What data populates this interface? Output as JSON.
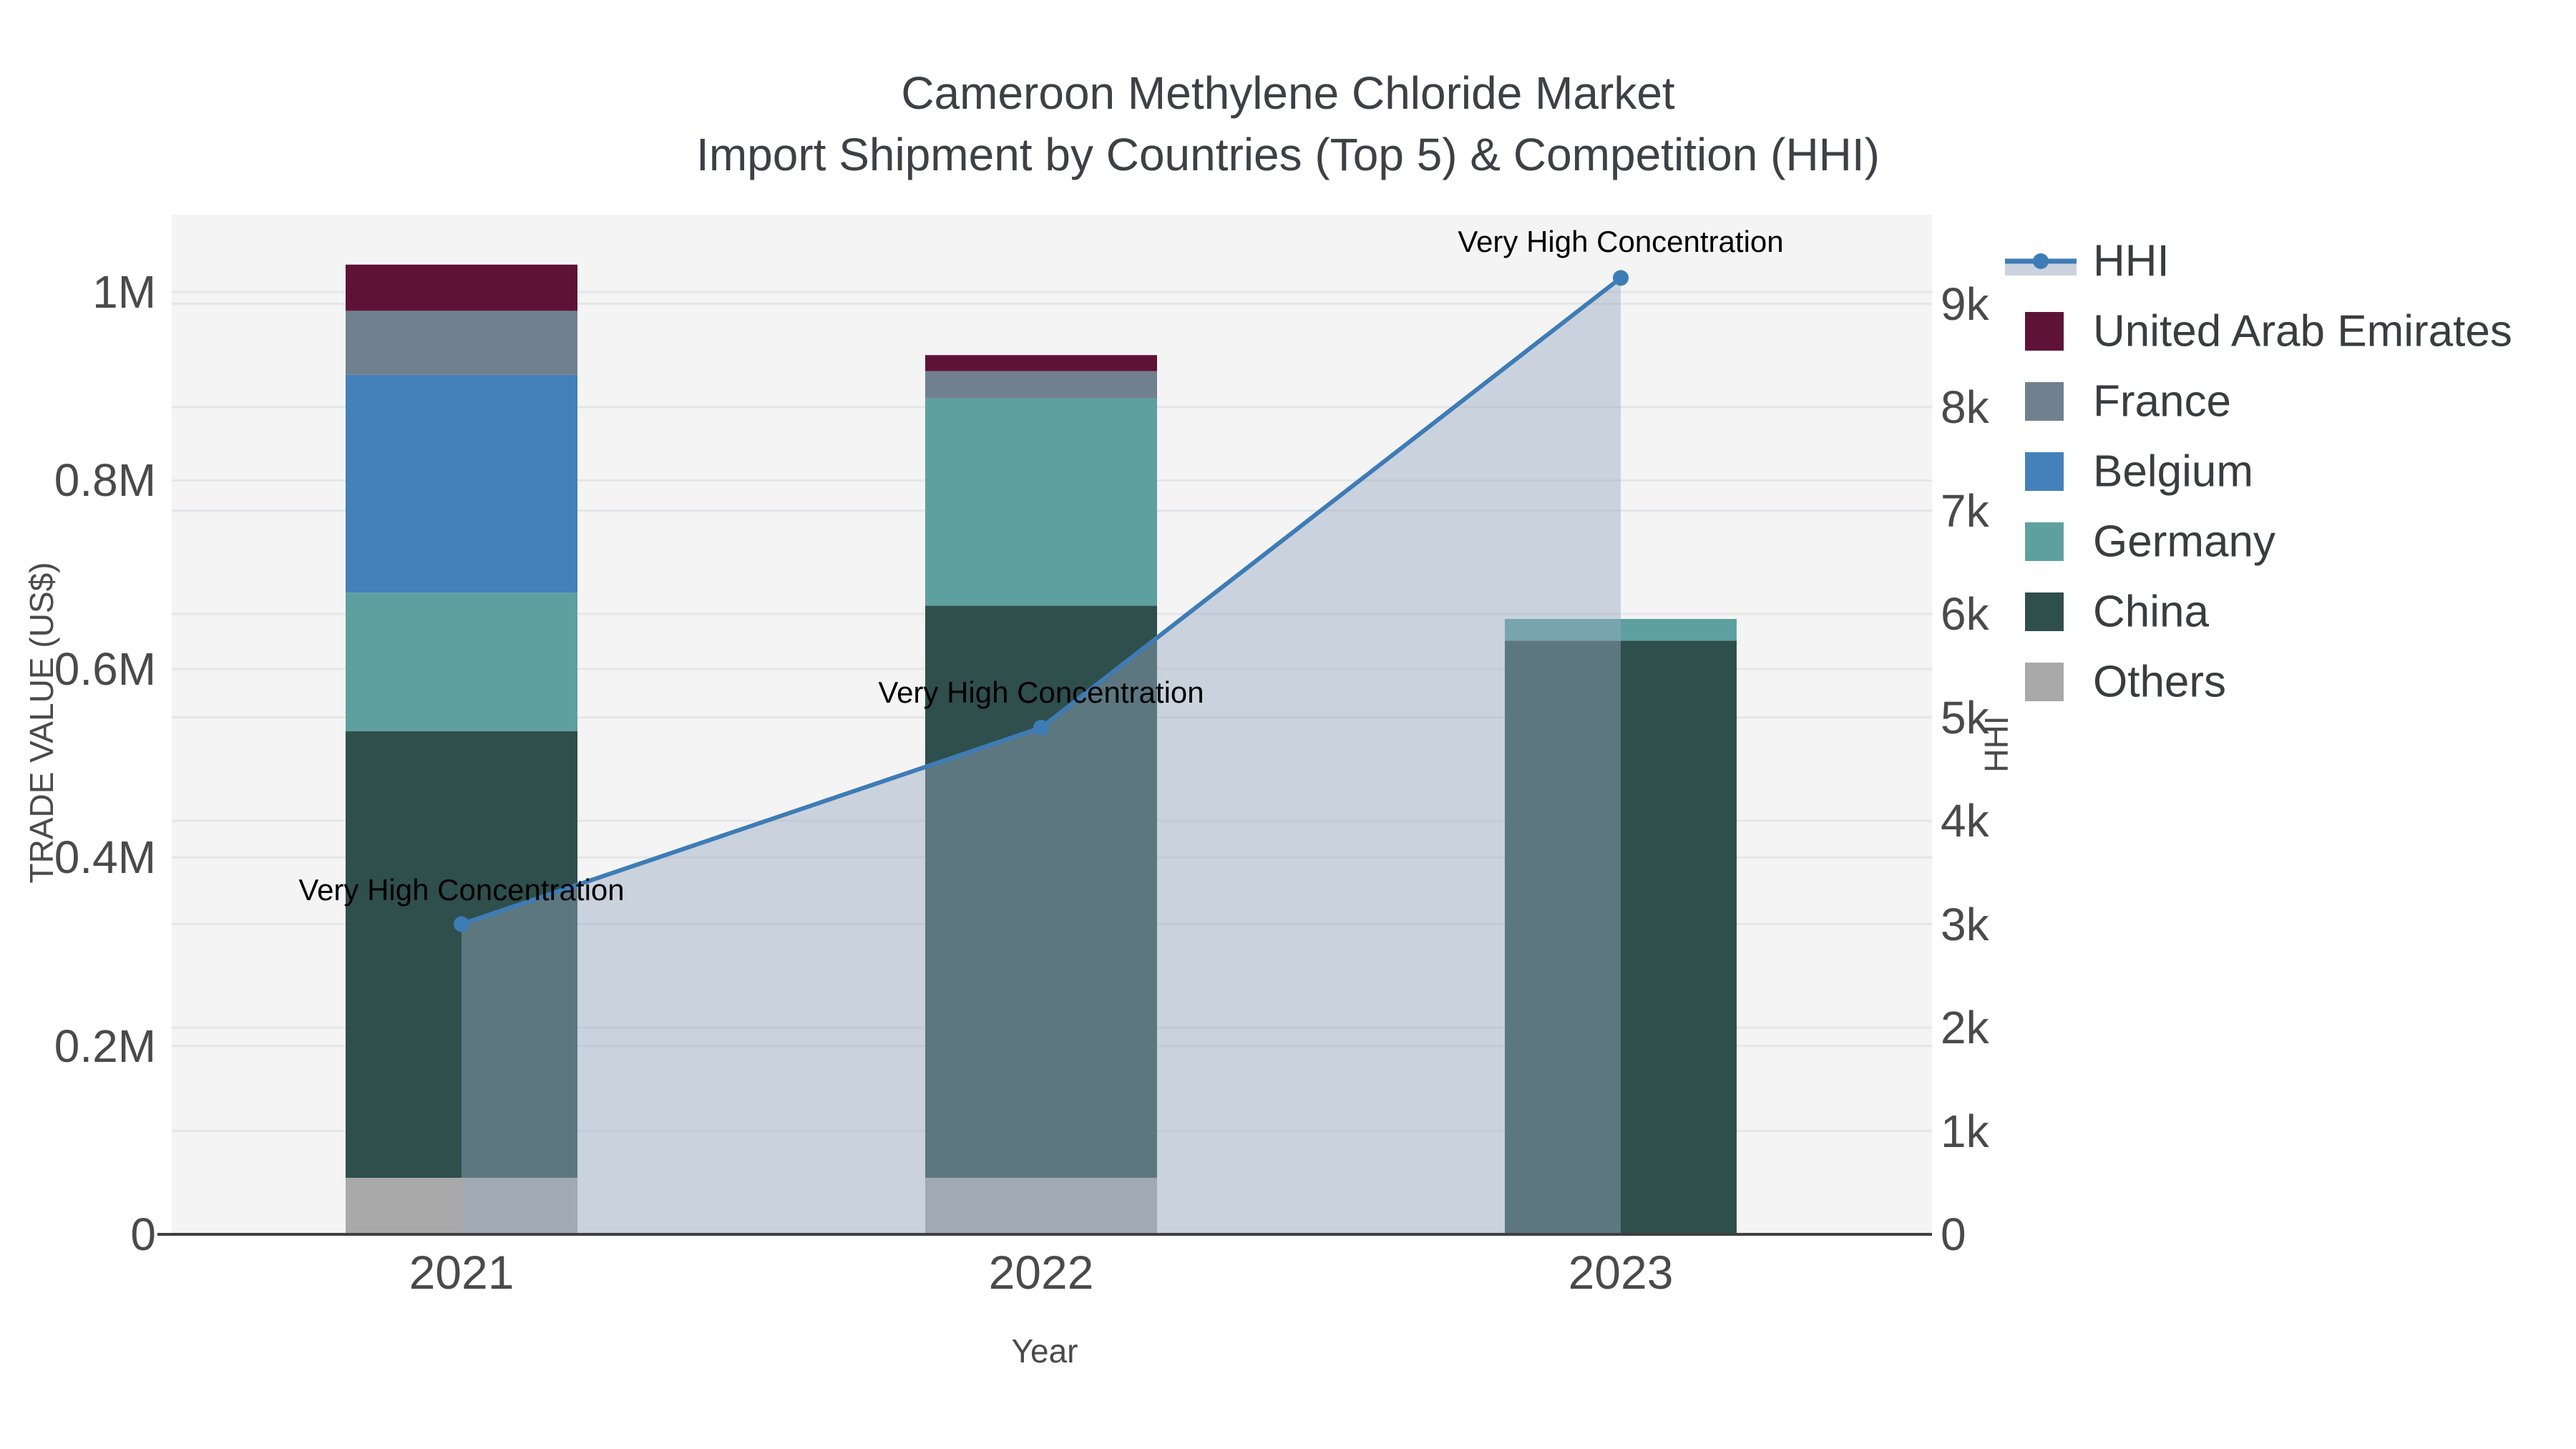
{
  "title": {
    "line1": "Cameroon Methylene Chloride Market",
    "line2": "Import Shipment by Countries (Top 5) & Competition (HHI)"
  },
  "axes": {
    "x": {
      "title": "Year",
      "ticks": [
        "2021",
        "2022",
        "2023"
      ]
    },
    "left": {
      "title": "TRADE VALUE (US$)",
      "ticks": [
        {
          "label": "0",
          "value": 0
        },
        {
          "label": "0.2M",
          "value": 200000
        },
        {
          "label": "0.4M",
          "value": 400000
        },
        {
          "label": "0.6M",
          "value": 600000
        },
        {
          "label": "0.8M",
          "value": 800000
        },
        {
          "label": "1M",
          "value": 1000000
        }
      ]
    },
    "right": {
      "title": "HHI",
      "ticks": [
        {
          "label": "0",
          "value": 0
        },
        {
          "label": "1k",
          "value": 1000
        },
        {
          "label": "2k",
          "value": 2000
        },
        {
          "label": "3k",
          "value": 3000
        },
        {
          "label": "4k",
          "value": 4000
        },
        {
          "label": "5k",
          "value": 5000
        },
        {
          "label": "6k",
          "value": 6000
        },
        {
          "label": "7k",
          "value": 7000
        },
        {
          "label": "8k",
          "value": 8000
        },
        {
          "label": "9k",
          "value": 9000
        }
      ]
    }
  },
  "legend": {
    "items": [
      {
        "label": "HHI",
        "type": "line",
        "color": "#3e7cb6",
        "band": "#ccd3de"
      },
      {
        "label": "United Arab Emirates",
        "type": "swatch",
        "color": "#5f1237"
      },
      {
        "label": "France",
        "type": "swatch",
        "color": "#70808f"
      },
      {
        "label": "Belgium",
        "type": "swatch",
        "color": "#4480ba"
      },
      {
        "label": "Germany",
        "type": "swatch",
        "color": "#5ea0a0"
      },
      {
        "label": "China",
        "type": "swatch",
        "color": "#2f4f4c"
      },
      {
        "label": "Others",
        "type": "swatch",
        "color": "#a9a9a9"
      }
    ]
  },
  "annotations": [
    {
      "text": "Very High Concentration"
    },
    {
      "text": "Very High Concentration"
    },
    {
      "text": "Very High Concentration"
    }
  ],
  "chart_data": {
    "type": "combo: stacked bar (left axis) + line with area fill (right axis)",
    "title": "Cameroon Methylene Chloride Market — Import Shipment by Countries (Top 5) & Competition (HHI)",
    "categories": [
      "2021",
      "2022",
      "2023"
    ],
    "bar_series": [
      {
        "name": "United Arab Emirates",
        "color": "#5f1237",
        "values": [
          49000,
          17000,
          0
        ]
      },
      {
        "name": "France",
        "color": "#70808f",
        "values": [
          68000,
          29000,
          0
        ]
      },
      {
        "name": "Belgium",
        "color": "#4480ba",
        "values": [
          231000,
          0,
          0
        ]
      },
      {
        "name": "Germany",
        "color": "#5ea0a0",
        "values": [
          147000,
          220000,
          23000
        ]
      },
      {
        "name": "China",
        "color": "#2f4f4c",
        "values": [
          474000,
          607000,
          630000
        ]
      },
      {
        "name": "Others",
        "color": "#a9a9a9",
        "values": [
          60000,
          60000,
          0
        ]
      }
    ],
    "bar_totals": [
      1029000,
      933000,
      653000
    ],
    "line_series": {
      "name": "HHI",
      "axis": "right",
      "color": "#3e7cb6",
      "fill": "rgba(150,168,192,0.45)",
      "values": [
        3000,
        4900,
        9250
      ]
    },
    "xlabel": "Year",
    "ylabel_left": "TRADE VALUE (US$)",
    "ylabel_right": "HHI",
    "ylim_left": [
      0,
      1086000
    ],
    "ylim_right": [
      0,
      9860
    ],
    "grid": true,
    "legend_position": "right",
    "plot_background": "#f4f4f5",
    "annotation_text": "Very High Concentration"
  }
}
